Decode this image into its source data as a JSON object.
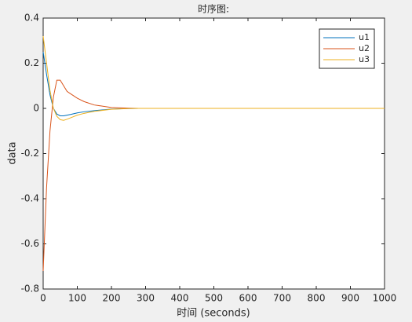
{
  "chart_data": {
    "type": "line",
    "title": "时序图:",
    "x_label": "时间 (seconds)",
    "y_label": "data",
    "x": [
      0,
      10,
      20,
      30,
      40,
      50,
      60,
      70,
      80,
      100,
      120,
      150,
      200,
      250,
      280,
      1000
    ],
    "series": [
      {
        "name": "u1",
        "color": "#0072bd",
        "values": [
          0.25,
          0.15,
          0.06,
          0.0,
          -0.025,
          -0.033,
          -0.033,
          -0.03,
          -0.027,
          -0.02,
          -0.015,
          -0.01,
          -0.003,
          -0.001,
          0,
          0
        ]
      },
      {
        "name": "u2",
        "color": "#d95319",
        "values": [
          -0.72,
          -0.35,
          -0.1,
          0.05,
          0.125,
          0.125,
          0.1,
          0.075,
          0.065,
          0.045,
          0.03,
          0.015,
          0.004,
          0.001,
          0,
          0
        ]
      },
      {
        "name": "u3",
        "color": "#edb120",
        "values": [
          0.32,
          0.2,
          0.08,
          0.0,
          -0.035,
          -0.05,
          -0.053,
          -0.048,
          -0.042,
          -0.03,
          -0.022,
          -0.013,
          -0.004,
          -0.001,
          0,
          0
        ]
      }
    ],
    "xlim": [
      0,
      1000
    ],
    "xticks": [
      0,
      100,
      200,
      300,
      400,
      500,
      600,
      700,
      800,
      900,
      1000
    ],
    "ylim": [
      -0.8,
      0.4
    ],
    "yticks": [
      -0.8,
      -0.6,
      -0.4,
      -0.2,
      0,
      0.2,
      0.4
    ],
    "grid": false,
    "legend": "northeast"
  }
}
